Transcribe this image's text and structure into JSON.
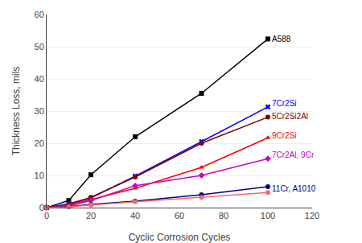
{
  "chart_data": {
    "type": "line",
    "x_label": "Cyclic Corrosion Cycles",
    "y_label": "Thickness Loss, mils",
    "x": [
      0,
      10,
      20,
      40,
      70,
      100
    ],
    "series": [
      {
        "color": "#000000",
        "marker": "square",
        "values": [
          0,
          2.2,
          10.2,
          22.0,
          35.5,
          52.4
        ]
      },
      {
        "color": "#0000FF",
        "marker": "x",
        "values": [
          0,
          1.2,
          3.0,
          9.8,
          20.5,
          31.3
        ]
      },
      {
        "color": "#800000",
        "marker": "circle",
        "values": [
          0,
          1.0,
          3.2,
          9.5,
          20.0,
          28.1
        ]
      },
      {
        "color": "#FF0000",
        "marker": "triangle-up",
        "values": [
          0,
          0.8,
          2.5,
          6.0,
          12.5,
          21.7
        ]
      },
      {
        "color": "#CC00CC",
        "marker": "diamond",
        "values": [
          0,
          0.5,
          2.2,
          6.8,
          10.0,
          15.2
        ]
      },
      {
        "color": "#000080",
        "marker": "circle",
        "values": [
          0,
          0.3,
          1.0,
          2.0,
          4.0,
          6.5
        ]
      },
      {
        "color": "#FF6666",
        "marker": "circle",
        "values": [
          0,
          0.2,
          0.8,
          1.8,
          3.2,
          4.7
        ]
      }
    ],
    "annotations": [
      {
        "text": "A588",
        "x": 101,
        "y": 52.4,
        "color": "#000000"
      },
      {
        "text": "7Cr2Si",
        "x": 101,
        "y": 32.5,
        "color": "#0000FF"
      },
      {
        "text": "5Cr2Si2Al",
        "x": 101,
        "y": 28.5,
        "color": "#800000"
      },
      {
        "text": "9Cr2Si",
        "x": 101,
        "y": 22.5,
        "color": "#FF0000"
      },
      {
        "text": "7Cr2Al, 9Cr",
        "x": 101,
        "y": 16.5,
        "color": "#CC00CC"
      },
      {
        "text": "11Cr, A1010",
        "x": 101,
        "y": 6.0,
        "color": "#000080"
      }
    ],
    "xlim": [
      0,
      120
    ],
    "ylim": [
      0,
      60
    ],
    "xticks": [
      0,
      20,
      40,
      60,
      80,
      100,
      120
    ],
    "yticks": [
      0,
      10,
      20,
      30,
      40,
      50,
      60
    ],
    "grid": "y"
  }
}
